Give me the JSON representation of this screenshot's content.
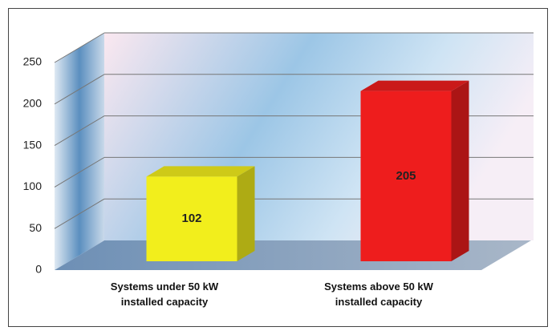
{
  "chart_data": {
    "type": "bar3d",
    "categories": [
      "Systems under 50 kW installed capacity",
      "Systems above 50 kW installed capacity"
    ],
    "values": [
      102,
      205
    ],
    "colors": [
      "#f2ee1c",
      "#ee1d1d"
    ],
    "ylim": [
      0,
      250
    ],
    "yticks": [
      0,
      50,
      100,
      150,
      200,
      250
    ],
    "grid": true
  }
}
